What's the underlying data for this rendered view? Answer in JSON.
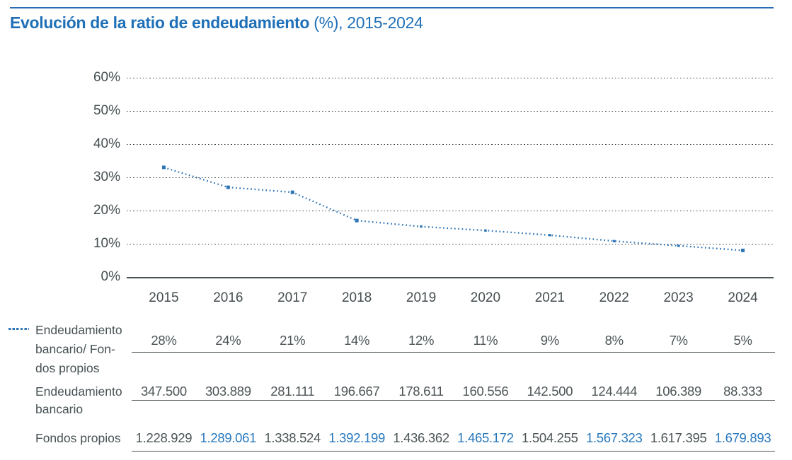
{
  "header": {
    "title_bold": "Evolución de la ratio de endeudamiento",
    "title_rest": " (%), 2015-2024"
  },
  "colors": {
    "title_blue": "#1f70b7",
    "top_rule_blue": "#2a6cb3",
    "line_blue": "#2e75b6",
    "value_blue": "#2878be",
    "text_gray": "#475254",
    "grid_gray": "#3e4a4c"
  },
  "chart_data": {
    "type": "line",
    "title": "Evolución de la ratio de endeudamiento (%), 2015-2024",
    "categories": [
      "2015",
      "2016",
      "2017",
      "2018",
      "2019",
      "2020",
      "2021",
      "2022",
      "2023",
      "2024"
    ],
    "y_ticks": [
      "60%",
      "50%",
      "40%",
      "30%",
      "20%",
      "10%",
      "0%"
    ],
    "ylim": [
      0,
      60
    ],
    "grid": "dotted-horizontal",
    "line_style": "dotted",
    "legend_position": "left-of-data-rows",
    "series": [
      {
        "name": "Endeudamiento bancario/ Fondos propios",
        "unit": "%",
        "values": [
          28,
          24,
          21,
          14,
          12,
          11,
          9,
          8,
          7,
          5
        ],
        "labels": [
          "28%",
          "24%",
          "21%",
          "14%",
          "12%",
          "11%",
          "9%",
          "8%",
          "7%",
          "5%"
        ]
      },
      {
        "name": "Endeudamiento bancario",
        "values": [
          347500,
          303889,
          281111,
          196667,
          178611,
          160556,
          142500,
          124444,
          106389,
          88333
        ],
        "labels": [
          "347.500",
          "303.889",
          "281.111",
          "196.667",
          "178.611",
          "160.556",
          "142.500",
          "124.444",
          "106.389",
          "88.333"
        ]
      },
      {
        "name": "Fondos propios",
        "values": [
          1228929,
          1289061,
          1338524,
          1392199,
          1436362,
          1465172,
          1504255,
          1567323,
          1617395,
          1679893
        ],
        "labels": [
          "1.228.929",
          "1.289.061",
          "1.338.524",
          "1.392.199",
          "1.436.362",
          "1.465.172",
          "1.504.255",
          "1.567.323",
          "1.617.395",
          "1.679.893"
        ]
      }
    ],
    "line_plotted_pct_visual": [
      33,
      27,
      25.5,
      17,
      15.2,
      14,
      12.6,
      10.8,
      9.4,
      8
    ],
    "fondos_blue_mask": [
      false,
      true,
      false,
      true,
      false,
      true,
      false,
      true,
      false,
      true
    ]
  },
  "legend": {
    "row1_label_lines": [
      "Endeudamiento",
      "bancario/ Fon-",
      "dos propios"
    ],
    "row2_label_lines": [
      "Endeudamiento",
      "bancario"
    ],
    "row3_label_lines": [
      "Fondos propios"
    ]
  }
}
